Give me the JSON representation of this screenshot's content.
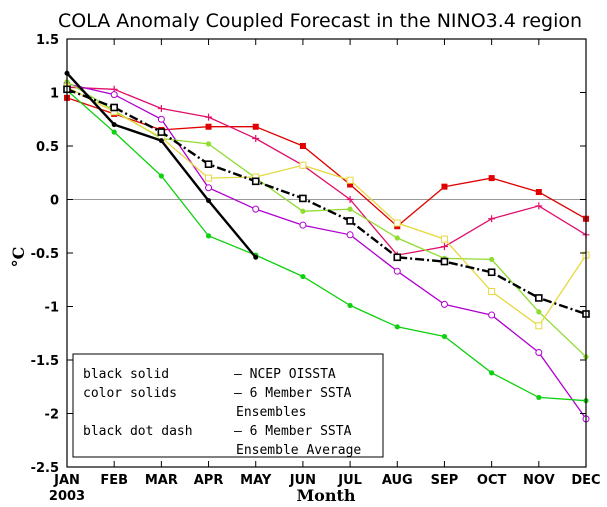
{
  "chart_data": {
    "type": "line",
    "title": "COLA Anomaly Coupled Forecast in the NINO3.4 region",
    "xlabel": "Month",
    "ylabel": "°C",
    "year_label": "2003",
    "categories": [
      "JAN",
      "FEB",
      "MAR",
      "APR",
      "MAY",
      "JUN",
      "JUL",
      "AUG",
      "SEP",
      "OCT",
      "NOV",
      "DEC"
    ],
    "ylim": [
      -2.5,
      1.5
    ],
    "yticks": [
      "1.5",
      "1",
      "0.5",
      "0",
      "-0.5",
      "-1",
      "-1.5",
      "-2",
      "-2.5"
    ],
    "ytick_values": [
      1.5,
      1,
      0.5,
      0,
      -0.5,
      -1,
      -1.5,
      -2,
      -2.5
    ],
    "zero_line": true,
    "legend": {
      "placement": "bottom-left",
      "lines": [
        [
          "black solid",
          "— NCEP OISSTA"
        ],
        [
          "color solids",
          "— 6 Member SSTA"
        ],
        [
          "",
          "Ensembles"
        ],
        [
          "black dot dash",
          "— 6 Member SSTA"
        ],
        [
          "",
          "Ensemble Average"
        ]
      ]
    },
    "series": [
      {
        "color": "#000000",
        "style": "solid",
        "marker": "dot",
        "values": [
          1.18,
          0.7,
          0.55,
          -0.01,
          -0.54,
          null,
          null,
          null,
          null,
          null,
          null,
          null
        ]
      },
      {
        "color": "#000000",
        "style": "dotdash",
        "marker": "square",
        "values": [
          1.03,
          0.86,
          0.63,
          0.33,
          0.17,
          0.01,
          -0.2,
          -0.54,
          -0.58,
          -0.68,
          -0.92,
          -1.07
        ]
      },
      {
        "color": "#e00000",
        "style": "solid",
        "marker": "filled-square",
        "values": [
          0.95,
          0.8,
          0.65,
          0.68,
          0.68,
          0.5,
          0.14,
          -0.25,
          0.12,
          0.2,
          0.07,
          -0.18
        ]
      },
      {
        "color": "#e0106a",
        "style": "solid",
        "marker": "plus",
        "values": [
          1.05,
          1.03,
          0.85,
          0.77,
          0.57,
          0.32,
          0.0,
          -0.52,
          -0.44,
          -0.18,
          -0.06,
          -0.33
        ]
      },
      {
        "color": "#b000d0",
        "style": "solid",
        "marker": "circle",
        "values": [
          1.08,
          0.98,
          0.75,
          0.11,
          -0.09,
          -0.24,
          -0.33,
          -0.67,
          -0.98,
          -1.08,
          -1.43,
          -2.05
        ]
      },
      {
        "color": "#10d010",
        "style": "solid",
        "marker": "filled-circle",
        "values": [
          1.02,
          0.63,
          0.22,
          -0.34,
          -0.52,
          -0.72,
          -0.99,
          -1.19,
          -1.28,
          -1.62,
          -1.85,
          -1.88
        ]
      },
      {
        "color": "#90dc30",
        "style": "solid",
        "marker": "filled-circle",
        "values": [
          1.1,
          0.83,
          0.57,
          0.52,
          0.2,
          -0.11,
          -0.09,
          -0.36,
          -0.55,
          -0.56,
          -1.05,
          -1.47
        ]
      },
      {
        "color": "#e6d840",
        "style": "solid",
        "marker": "square",
        "values": [
          1.05,
          0.82,
          0.58,
          0.2,
          0.21,
          0.32,
          0.18,
          -0.22,
          -0.37,
          -0.86,
          -1.18,
          -0.52
        ]
      }
    ]
  }
}
